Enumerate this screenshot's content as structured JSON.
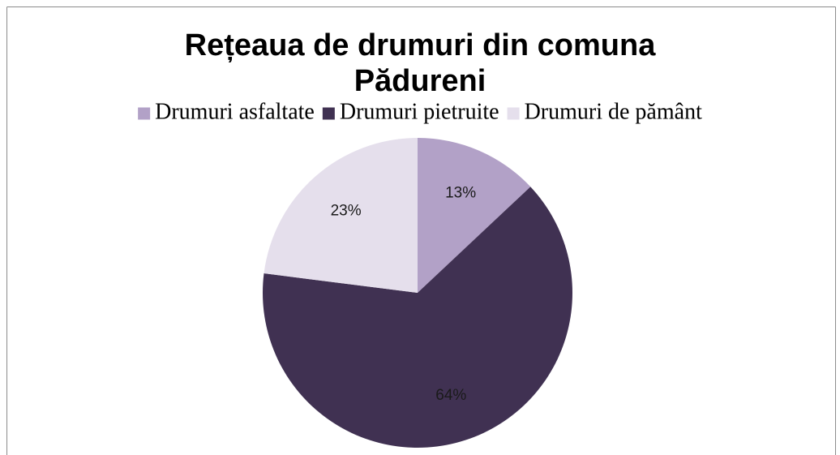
{
  "chart_data": {
    "type": "pie",
    "title": "Rețeaua de drumuri din comuna Pădureni",
    "categories": [
      "Drumuri asfaltate",
      "Drumuri pietruite",
      "Drumuri de pământ"
    ],
    "values": [
      13,
      64,
      23
    ],
    "value_labels": [
      "13%",
      "64%",
      "23%"
    ],
    "colors": [
      "#b2a1c7",
      "#403152",
      "#e5dfec"
    ],
    "legend": "top"
  }
}
